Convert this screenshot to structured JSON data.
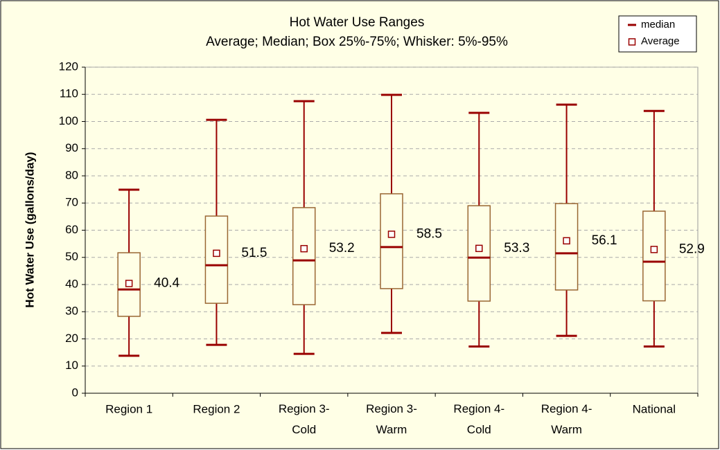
{
  "chart_data": {
    "type": "box",
    "title": "Hot Water Use Ranges",
    "subtitle": "Average; Median; Box 25%-75%; Whisker: 5%-95%",
    "y_label": "Hot Water Use (gallons/day)",
    "categories": [
      "Region 1",
      "Region 2",
      "Region 3-\nCold",
      "Region 3-\nWarm",
      "Region 4-\nCold",
      "Region 4-\nWarm",
      "National"
    ],
    "whisker_low": [
      13.8,
      17.8,
      14.5,
      22.2,
      17.2,
      21.1,
      17.2
    ],
    "q1": [
      28.3,
      33.1,
      32.6,
      38.5,
      33.9,
      38.0,
      34.0
    ],
    "q3": [
      51.7,
      65.2,
      68.3,
      73.4,
      69.0,
      69.8,
      67.0
    ],
    "whisker_high": [
      74.9,
      100.6,
      107.5,
      109.8,
      103.2,
      106.2,
      103.9
    ],
    "series": [
      {
        "name": "median",
        "color": "#990000",
        "values": [
          38.2,
          47.1,
          48.9,
          53.8,
          49.9,
          51.5,
          48.4
        ]
      },
      {
        "name": "Average",
        "color": "#990000",
        "values": [
          40.4,
          51.5,
          53.2,
          58.5,
          53.3,
          56.1,
          52.9
        ]
      }
    ],
    "box_color": "#996633",
    "whisker_color": "#990000",
    "ylim": [
      0,
      120
    ],
    "yticks": [
      0,
      10,
      20,
      30,
      40,
      50,
      60,
      70,
      80,
      90,
      100,
      110,
      120
    ],
    "grid": true,
    "legend": "top-right"
  }
}
